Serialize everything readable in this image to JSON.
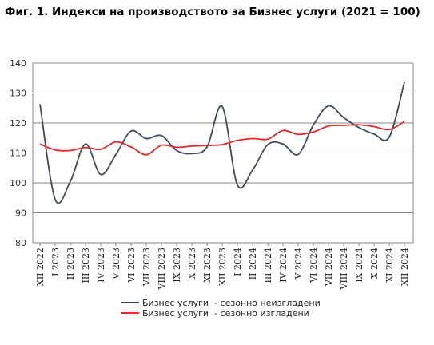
{
  "chart_data": {
    "type": "line",
    "title": "Фиг. 1. Индекси на производството за Бизнес услуги (2021 = 100)",
    "xlabel": "",
    "ylabel": "",
    "ylim": [
      80,
      140
    ],
    "yticks": [
      80,
      90,
      100,
      110,
      120,
      130,
      140
    ],
    "grid": true,
    "legend_position": "bottom",
    "categories": [
      "XII 2022",
      "I 2023",
      "II 2023",
      "III 2023",
      "IV 2023",
      "V 2023",
      "VI 2023",
      "VII 2023",
      "VIII 2023",
      "IX 2023",
      "X 2023",
      "XI 2023",
      "XII 2023",
      "I 2024",
      "II 2024",
      "III 2024",
      "IV 2024",
      "V 2024",
      "VI 2024",
      "VII 2024",
      "VIII 2024",
      "IX 2024",
      "X 2024",
      "XI 2024",
      "XII 2024"
    ],
    "series": [
      {
        "name": "Бизнес услуги  - сезонно неизгладени",
        "color": "#3d4b5e",
        "values": [
          126.3,
          94.5,
          100.5,
          113.0,
          102.8,
          109.5,
          117.3,
          114.8,
          115.8,
          110.8,
          109.8,
          112.0,
          125.5,
          99.3,
          104.3,
          112.8,
          113.0,
          109.5,
          119.3,
          125.7,
          121.8,
          118.5,
          116.3,
          115.3,
          133.6
        ]
      },
      {
        "name": "Бизнес услуги  - сезонно изгладени",
        "color": "#e8272a",
        "values": [
          113.0,
          111.0,
          110.8,
          111.8,
          111.2,
          113.7,
          112.0,
          109.4,
          112.6,
          111.9,
          112.3,
          112.5,
          112.8,
          114.2,
          114.8,
          114.6,
          117.5,
          116.2,
          117.0,
          119.0,
          119.2,
          119.4,
          118.8,
          117.8,
          120.5
        ]
      }
    ]
  }
}
